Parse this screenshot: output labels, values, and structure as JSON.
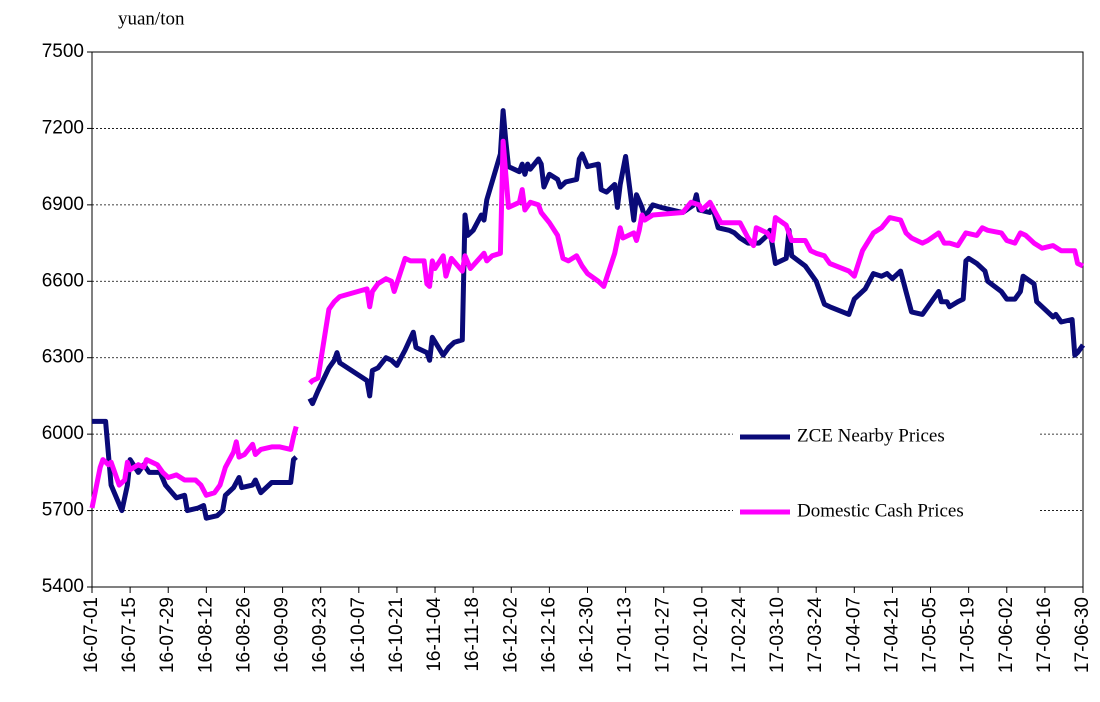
{
  "chart_data": {
    "type": "line",
    "y_label": "yuan/ton",
    "ylim": [
      5400,
      7500
    ],
    "yticks": [
      5400,
      5700,
      6000,
      6300,
      6600,
      6900,
      7200,
      7500
    ],
    "grid": true,
    "legend": "center-right",
    "xlim": [
      "16-07-01",
      "17-06-30"
    ],
    "xticks": [
      "16-07-01",
      "16-07-15",
      "16-07-29",
      "16-08-12",
      "16-08-26",
      "16-09-09",
      "16-09-23",
      "16-10-07",
      "16-10-21",
      "16-11-04",
      "16-11-18",
      "16-12-02",
      "16-12-16",
      "16-12-30",
      "17-01-13",
      "17-01-27",
      "17-02-10",
      "17-02-24",
      "17-03-10",
      "17-03-24",
      "17-04-07",
      "17-04-21",
      "17-05-05",
      "17-05-19",
      "17-06-02",
      "17-06-16",
      "17-06-30"
    ],
    "series": [
      {
        "name": "ZCE Nearby Prices",
        "color": "#0a0a78",
        "x": [
          "16-07-01",
          "16-07-06",
          "16-07-08",
          "16-07-12",
          "16-07-14",
          "16-07-15",
          "16-07-18",
          "16-07-20",
          "16-07-22",
          "16-07-26",
          "16-07-28",
          "16-08-01",
          "16-08-04",
          "16-08-05",
          "16-08-09",
          "16-08-11",
          "16-08-12",
          "16-08-16",
          "16-08-18",
          "16-08-19",
          "16-08-22",
          "16-08-24",
          "16-08-25",
          "16-08-29",
          "16-08-30",
          "16-09-01",
          "16-09-05",
          "16-09-08",
          "16-09-12",
          "16-09-13",
          "16-09-14",
          "16-09-16",
          "16-09-19",
          "16-09-20",
          "16-09-22",
          "16-09-26",
          "16-09-28",
          "16-09-29",
          "16-09-30",
          "16-10-10",
          "16-10-11",
          "16-10-12",
          "16-10-14",
          "16-10-17",
          "16-10-19",
          "16-10-21",
          "16-10-24",
          "16-10-27",
          "16-10-28",
          "16-11-01",
          "16-11-02",
          "16-11-03",
          "16-11-07",
          "16-11-09",
          "16-11-11",
          "16-11-14",
          "16-11-15",
          "16-11-16",
          "16-11-18",
          "16-11-21",
          "16-11-22",
          "16-11-23",
          "16-11-28",
          "16-11-29",
          "16-11-30",
          "16-12-01",
          "16-12-05",
          "16-12-06",
          "16-12-07",
          "16-12-08",
          "16-12-09",
          "16-12-12",
          "16-12-13",
          "16-12-14",
          "16-12-16",
          "16-12-19",
          "16-12-20",
          "16-12-22",
          "16-12-26",
          "16-12-27",
          "16-12-28",
          "16-12-30",
          "17-01-03",
          "17-01-04",
          "17-01-06",
          "17-01-09",
          "17-01-10",
          "17-01-11",
          "17-01-13",
          "17-01-16",
          "17-01-17",
          "17-01-19",
          "17-01-20",
          "17-01-23",
          "17-01-26",
          "17-02-03",
          "17-02-07",
          "17-02-08",
          "17-02-09",
          "17-02-13",
          "17-02-14",
          "17-02-16",
          "17-02-20",
          "17-02-22",
          "17-02-24",
          "17-02-27",
          "17-03-03",
          "17-03-06",
          "17-03-07",
          "17-03-09",
          "17-03-13",
          "17-03-14",
          "17-03-15",
          "17-03-20",
          "17-03-22",
          "17-03-24",
          "17-03-27",
          "17-03-29",
          "17-04-05",
          "17-04-07",
          "17-04-11",
          "17-04-14",
          "17-04-17",
          "17-04-19",
          "17-04-21",
          "17-04-24",
          "17-04-26",
          "17-04-28",
          "17-05-02",
          "17-05-04",
          "17-05-08",
          "17-05-09",
          "17-05-11",
          "17-05-12",
          "17-05-15",
          "17-05-17",
          "17-05-18",
          "17-05-19",
          "17-05-22",
          "17-05-25",
          "17-05-26",
          "17-05-31",
          "17-06-02",
          "17-06-05",
          "17-06-07",
          "17-06-08",
          "17-06-12",
          "17-06-13",
          "17-06-15",
          "17-06-19",
          "17-06-20",
          "17-06-22",
          "17-06-26",
          "17-06-27",
          "17-06-28",
          "17-06-30"
        ],
        "values": [
          6050,
          6050,
          5800,
          5700,
          5800,
          5900,
          5850,
          5880,
          5850,
          5850,
          5800,
          5750,
          5760,
          5700,
          5710,
          5720,
          5670,
          5680,
          5700,
          5760,
          5790,
          5830,
          5790,
          5800,
          5820,
          5770,
          5810,
          5810,
          5810,
          5900,
          5910,
          null,
          6140,
          6120,
          6170,
          6260,
          6290,
          6320,
          6280,
          6210,
          6150,
          6250,
          6260,
          6300,
          6290,
          6270,
          6330,
          6400,
          6340,
          6320,
          6290,
          6380,
          6310,
          6340,
          6360,
          6370,
          6860,
          6780,
          6800,
          6860,
          6840,
          6920,
          7100,
          7270,
          7150,
          7050,
          7030,
          7060,
          7020,
          7060,
          7040,
          7080,
          7060,
          6970,
          7020,
          7000,
          6970,
          6990,
          7000,
          7080,
          7100,
          7050,
          7060,
          6960,
          6950,
          6980,
          6890,
          6980,
          7090,
          6840,
          6940,
          6890,
          6850,
          6900,
          6890,
          6870,
          6900,
          6940,
          6880,
          6870,
          6890,
          6810,
          6800,
          6790,
          6770,
          6750,
          6750,
          6780,
          6800,
          6670,
          6690,
          6800,
          6700,
          6660,
          6630,
          6600,
          6510,
          6500,
          6470,
          6530,
          6570,
          6630,
          6620,
          6630,
          6610,
          6640,
          6560,
          6480,
          6470,
          6500,
          6560,
          6520,
          6520,
          6500,
          6520,
          6530,
          6680,
          6690,
          6670,
          6640,
          6600,
          6560,
          6530,
          6530,
          6560,
          6620,
          6590,
          6520,
          6500,
          6460,
          6470,
          6440,
          6450,
          6310,
          6320,
          6350
        ]
      },
      {
        "name": "Domestic Cash Prices",
        "color": "#ff00ff",
        "x": [
          "16-07-01",
          "16-07-04",
          "16-07-05",
          "16-07-07",
          "16-07-08",
          "16-07-11",
          "16-07-13",
          "16-07-14",
          "16-07-15",
          "16-07-18",
          "16-07-20",
          "16-07-21",
          "16-07-25",
          "16-07-27",
          "16-07-29",
          "16-08-01",
          "16-08-04",
          "16-08-08",
          "16-08-10",
          "16-08-12",
          "16-08-15",
          "16-08-17",
          "16-08-19",
          "16-08-22",
          "16-08-23",
          "16-08-24",
          "16-08-26",
          "16-08-29",
          "16-08-30",
          "16-09-01",
          "16-09-05",
          "16-09-08",
          "16-09-12",
          "16-09-13",
          "16-09-14",
          "16-09-16",
          "16-09-19",
          "16-09-20",
          "16-09-22",
          "16-09-26",
          "16-09-28",
          "16-09-30",
          "16-10-10",
          "16-10-11",
          "16-10-12",
          "16-10-14",
          "16-10-17",
          "16-10-19",
          "16-10-20",
          "16-10-24",
          "16-10-26",
          "16-10-31",
          "16-11-01",
          "16-11-02",
          "16-11-03",
          "16-11-04",
          "16-11-07",
          "16-11-08",
          "16-11-10",
          "16-11-14",
          "16-11-15",
          "16-11-17",
          "16-11-22",
          "16-11-23",
          "16-11-25",
          "16-11-28",
          "16-11-29",
          "16-12-01",
          "16-12-05",
          "16-12-06",
          "16-12-07",
          "16-12-09",
          "16-12-12",
          "16-12-13",
          "16-12-16",
          "16-12-19",
          "16-12-21",
          "16-12-23",
          "16-12-26",
          "16-12-28",
          "16-12-30",
          "17-01-03",
          "17-01-05",
          "17-01-09",
          "17-01-10",
          "17-01-11",
          "17-01-12",
          "17-01-16",
          "17-01-17",
          "17-01-18",
          "17-01-19",
          "17-01-20",
          "17-01-23",
          "17-02-03",
          "17-02-06",
          "17-02-09",
          "17-02-10",
          "17-02-13",
          "17-02-15",
          "17-02-17",
          "17-02-24",
          "17-02-27",
          "17-03-01",
          "17-03-02",
          "17-03-06",
          "17-03-08",
          "17-03-09",
          "17-03-13",
          "17-03-15",
          "17-03-20",
          "17-03-22",
          "17-03-24",
          "17-03-27",
          "17-03-29",
          "17-04-05",
          "17-04-07",
          "17-04-10",
          "17-04-14",
          "17-04-17",
          "17-04-20",
          "17-04-24",
          "17-04-26",
          "17-04-28",
          "17-05-02",
          "17-05-04",
          "17-05-08",
          "17-05-10",
          "17-05-12",
          "17-05-15",
          "17-05-18",
          "17-05-22",
          "17-05-24",
          "17-05-26",
          "17-05-31",
          "17-06-02",
          "17-06-05",
          "17-06-07",
          "17-06-09",
          "17-06-12",
          "17-06-15",
          "17-06-19",
          "17-06-22",
          "17-06-27",
          "17-06-28",
          "17-06-30"
        ],
        "values": [
          5710,
          5870,
          5900,
          5880,
          5890,
          5800,
          5820,
          5890,
          5860,
          5880,
          5870,
          5900,
          5880,
          5850,
          5830,
          5840,
          5820,
          5820,
          5800,
          5760,
          5770,
          5800,
          5870,
          5930,
          5970,
          5910,
          5920,
          5960,
          5920,
          5940,
          5950,
          5950,
          5940,
          5990,
          6030,
          null,
          6200,
          6210,
          6220,
          6490,
          6520,
          6540,
          6570,
          6500,
          6560,
          6590,
          6610,
          6600,
          6560,
          6690,
          6680,
          6680,
          6590,
          6580,
          6680,
          6650,
          6700,
          6620,
          6690,
          6640,
          6700,
          6650,
          6710,
          6680,
          6700,
          6710,
          7150,
          6890,
          6910,
          6960,
          6880,
          6910,
          6900,
          6870,
          6830,
          6780,
          6690,
          6680,
          6700,
          6660,
          6630,
          6600,
          6580,
          6710,
          6760,
          6810,
          6770,
          6790,
          6760,
          6800,
          6860,
          6840,
          6860,
          6870,
          6910,
          6900,
          6880,
          6910,
          6870,
          6830,
          6830,
          6770,
          6740,
          6810,
          6790,
          6760,
          6850,
          6820,
          6760,
          6760,
          6720,
          6710,
          6700,
          6670,
          6640,
          6620,
          6720,
          6790,
          6810,
          6850,
          6840,
          6790,
          6770,
          6750,
          6760,
          6790,
          6750,
          6750,
          6740,
          6790,
          6780,
          6810,
          6800,
          6790,
          6760,
          6750,
          6790,
          6780,
          6750,
          6730,
          6740,
          6720,
          6720,
          6670,
          6660
        ]
      }
    ]
  }
}
